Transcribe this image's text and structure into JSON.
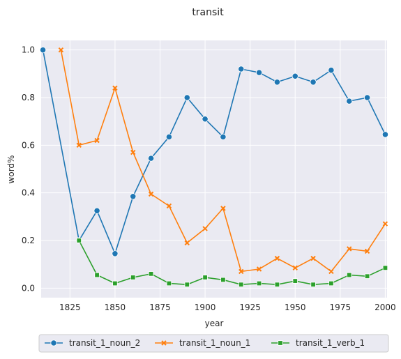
{
  "chart_data": {
    "type": "line",
    "title": "transit",
    "xlabel": "year",
    "ylabel": "word%",
    "xlim": [
      1809,
      2001
    ],
    "ylim": [
      -0.04,
      1.04
    ],
    "xticks": [
      1825,
      1850,
      1875,
      1900,
      1925,
      1950,
      1975,
      2000
    ],
    "yticks": [
      0.0,
      0.2,
      0.4,
      0.6,
      0.8,
      1.0
    ],
    "xtick_labels": [
      "1825",
      "1850",
      "1875",
      "1900",
      "1925",
      "1950",
      "1975",
      "2000"
    ],
    "ytick_labels": [
      "0.0",
      "0.2",
      "0.4",
      "0.6",
      "0.8",
      "1.0"
    ],
    "grid": true,
    "legend_position": "bottom",
    "series": [
      {
        "name": "transit_1_noun_2",
        "color": "#1f77b4",
        "marker": "circle",
        "x": [
          1810,
          1830,
          1840,
          1850,
          1860,
          1870,
          1880,
          1890,
          1900,
          1910,
          1920,
          1930,
          1940,
          1950,
          1960,
          1970,
          1980,
          1990,
          2000
        ],
        "y": [
          1.0,
          0.2,
          0.325,
          0.145,
          0.385,
          0.545,
          0.635,
          0.8,
          0.71,
          0.635,
          0.92,
          0.905,
          0.865,
          0.89,
          0.865,
          0.915,
          0.785,
          0.8,
          0.645
        ]
      },
      {
        "name": "transit_1_noun_1",
        "color": "#ff7f0e",
        "marker": "x",
        "x": [
          1820,
          1830,
          1840,
          1850,
          1860,
          1870,
          1880,
          1890,
          1900,
          1910,
          1920,
          1930,
          1940,
          1950,
          1960,
          1970,
          1980,
          1990,
          2000
        ],
        "y": [
          1.0,
          0.6,
          0.62,
          0.84,
          0.57,
          0.395,
          0.345,
          0.19,
          0.25,
          0.335,
          0.07,
          0.08,
          0.125,
          0.085,
          0.125,
          0.07,
          0.165,
          0.155,
          0.27
        ]
      },
      {
        "name": "transit_1_verb_1",
        "color": "#2ca02c",
        "marker": "square",
        "x": [
          1830,
          1840,
          1850,
          1860,
          1870,
          1880,
          1890,
          1900,
          1910,
          1920,
          1930,
          1940,
          1950,
          1960,
          1970,
          1980,
          1990,
          2000
        ],
        "y": [
          0.2,
          0.055,
          0.02,
          0.045,
          0.06,
          0.02,
          0.015,
          0.045,
          0.035,
          0.015,
          0.02,
          0.015,
          0.03,
          0.015,
          0.02,
          0.055,
          0.05,
          0.085
        ]
      }
    ]
  }
}
